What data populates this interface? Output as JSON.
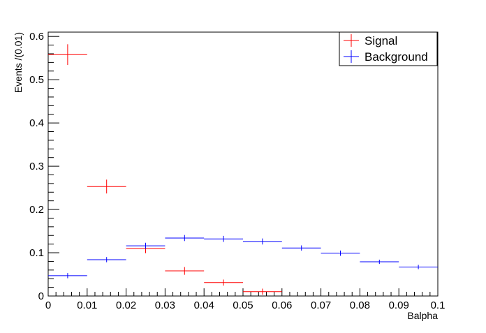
{
  "chart_data": {
    "type": "scatter",
    "title": "",
    "xlabel": "Balpha",
    "ylabel": "Events /(0.01)",
    "xlim": [
      0,
      0.1
    ],
    "ylim": [
      0,
      0.61
    ],
    "x_ticks": [
      "0",
      "0.01",
      "0.02",
      "0.03",
      "0.04",
      "0.05",
      "0.06",
      "0.07",
      "0.08",
      "0.09",
      "0.1"
    ],
    "y_ticks": [
      "0",
      "0.1",
      "0.2",
      "0.3",
      "0.4",
      "0.5",
      "0.6"
    ],
    "x_tick_values": [
      0,
      0.01,
      0.02,
      0.03,
      0.04,
      0.05,
      0.06,
      0.07,
      0.08,
      0.09,
      0.1
    ],
    "y_tick_values": [
      0,
      0.1,
      0.2,
      0.3,
      0.4,
      0.5,
      0.6
    ],
    "bin_width": 0.01,
    "legend_position": "top-right",
    "grid": false,
    "series": [
      {
        "name": "Signal",
        "color": "#ff0000",
        "x": [
          0.005,
          0.015,
          0.025,
          0.035,
          0.045,
          0.055
        ],
        "y": [
          0.558,
          0.253,
          0.11,
          0.058,
          0.031,
          0.01
        ],
        "yerr": [
          0.024,
          0.016,
          0.011,
          0.009,
          0.007,
          0.007
        ]
      },
      {
        "name": "Background",
        "color": "#0000ff",
        "x": [
          0.005,
          0.015,
          0.025,
          0.035,
          0.045,
          0.055,
          0.065,
          0.075,
          0.085,
          0.095
        ],
        "y": [
          0.047,
          0.084,
          0.116,
          0.134,
          0.132,
          0.126,
          0.111,
          0.099,
          0.079,
          0.067
        ],
        "yerr": [
          0.006,
          0.006,
          0.007,
          0.007,
          0.007,
          0.007,
          0.006,
          0.006,
          0.005,
          0.005
        ]
      }
    ]
  }
}
